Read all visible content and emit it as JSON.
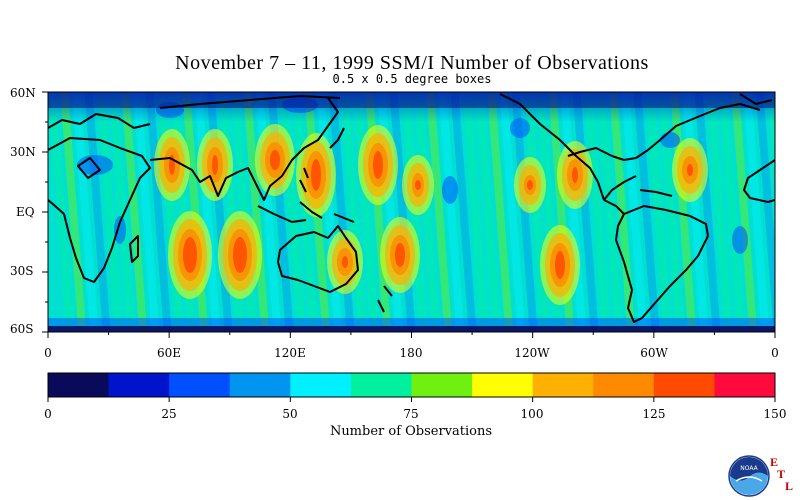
{
  "title": "November 7 – 11, 1999 SSM/I Number of Observations",
  "subtitle": "0.5 x 0.5 degree boxes",
  "map": {
    "lat_ticks": [
      "60N",
      "30N",
      "EQ",
      "30S",
      "60S"
    ],
    "lon_ticks": [
      "0",
      "60E",
      "120E",
      "180",
      "120W",
      "60W",
      "0"
    ]
  },
  "colorbar": {
    "title": "Number of Observations",
    "tick_labels": [
      "0",
      "25",
      "50",
      "75",
      "100",
      "125",
      "150"
    ],
    "range": [
      0,
      150
    ],
    "colors": [
      "#0a0a5a",
      "#0014cc",
      "#0050ff",
      "#0096f0",
      "#00f0ff",
      "#00f0a0",
      "#70f010",
      "#ffff00",
      "#ffb000",
      "#ff8a00",
      "#ff4a00",
      "#ff0a3c"
    ]
  },
  "logo": {
    "name": "noaa-logo",
    "text": "NOAA",
    "letters": [
      "E",
      "T",
      "L"
    ]
  }
}
